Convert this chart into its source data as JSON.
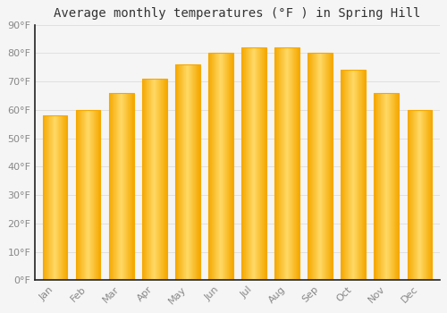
{
  "title": "Average monthly temperatures (°F ) in Spring Hill",
  "months": [
    "Jan",
    "Feb",
    "Mar",
    "Apr",
    "May",
    "Jun",
    "Jul",
    "Aug",
    "Sep",
    "Oct",
    "Nov",
    "Dec"
  ],
  "values": [
    58,
    60,
    66,
    71,
    76,
    80,
    82,
    82,
    80,
    74,
    66,
    60
  ],
  "bar_color_center": "#FFD966",
  "bar_color_edge": "#F5A800",
  "background_color": "#F5F5F5",
  "grid_color": "#DDDDDD",
  "ylim": [
    0,
    90
  ],
  "yticks": [
    0,
    10,
    20,
    30,
    40,
    50,
    60,
    70,
    80,
    90
  ],
  "ytick_labels": [
    "0°F",
    "10°F",
    "20°F",
    "30°F",
    "40°F",
    "50°F",
    "60°F",
    "70°F",
    "80°F",
    "90°F"
  ],
  "title_fontsize": 10,
  "tick_fontsize": 8,
  "tick_color": "#888888",
  "left_spine_color": "#222222",
  "bottom_spine_color": "#222222"
}
